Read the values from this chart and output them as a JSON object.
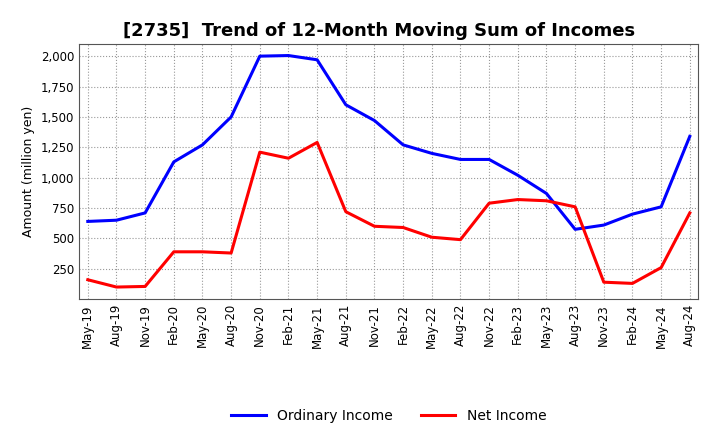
{
  "title": "[2735]  Trend of 12-Month Moving Sum of Incomes",
  "ylabel": "Amount (million yen)",
  "x_labels": [
    "May-19",
    "Aug-19",
    "Nov-19",
    "Feb-20",
    "May-20",
    "Aug-20",
    "Nov-20",
    "Feb-21",
    "May-21",
    "Aug-21",
    "Nov-21",
    "Feb-22",
    "May-22",
    "Aug-22",
    "Nov-22",
    "Feb-23",
    "May-23",
    "Aug-23",
    "Nov-23",
    "Feb-24",
    "May-24",
    "Aug-24"
  ],
  "ordinary_income": [
    640,
    650,
    710,
    1130,
    1270,
    1500,
    2000,
    2005,
    1970,
    1600,
    1470,
    1270,
    1200,
    1150,
    1150,
    1020,
    870,
    575,
    610,
    700,
    760,
    1340
  ],
  "net_income": [
    160,
    100,
    105,
    390,
    390,
    380,
    1210,
    1160,
    1290,
    720,
    600,
    590,
    510,
    490,
    790,
    820,
    810,
    760,
    140,
    130,
    260,
    710
  ],
  "ordinary_color": "#0000ff",
  "net_color": "#ff0000",
  "ylim": [
    0,
    2100
  ],
  "yticks": [
    250,
    500,
    750,
    1000,
    1250,
    1500,
    1750,
    2000
  ],
  "bg_color": "#ffffff",
  "grid_color": "#999999",
  "title_fontsize": 13,
  "axis_label_fontsize": 9,
  "tick_fontsize": 8.5,
  "line_width": 2.2,
  "legend_fontsize": 10
}
